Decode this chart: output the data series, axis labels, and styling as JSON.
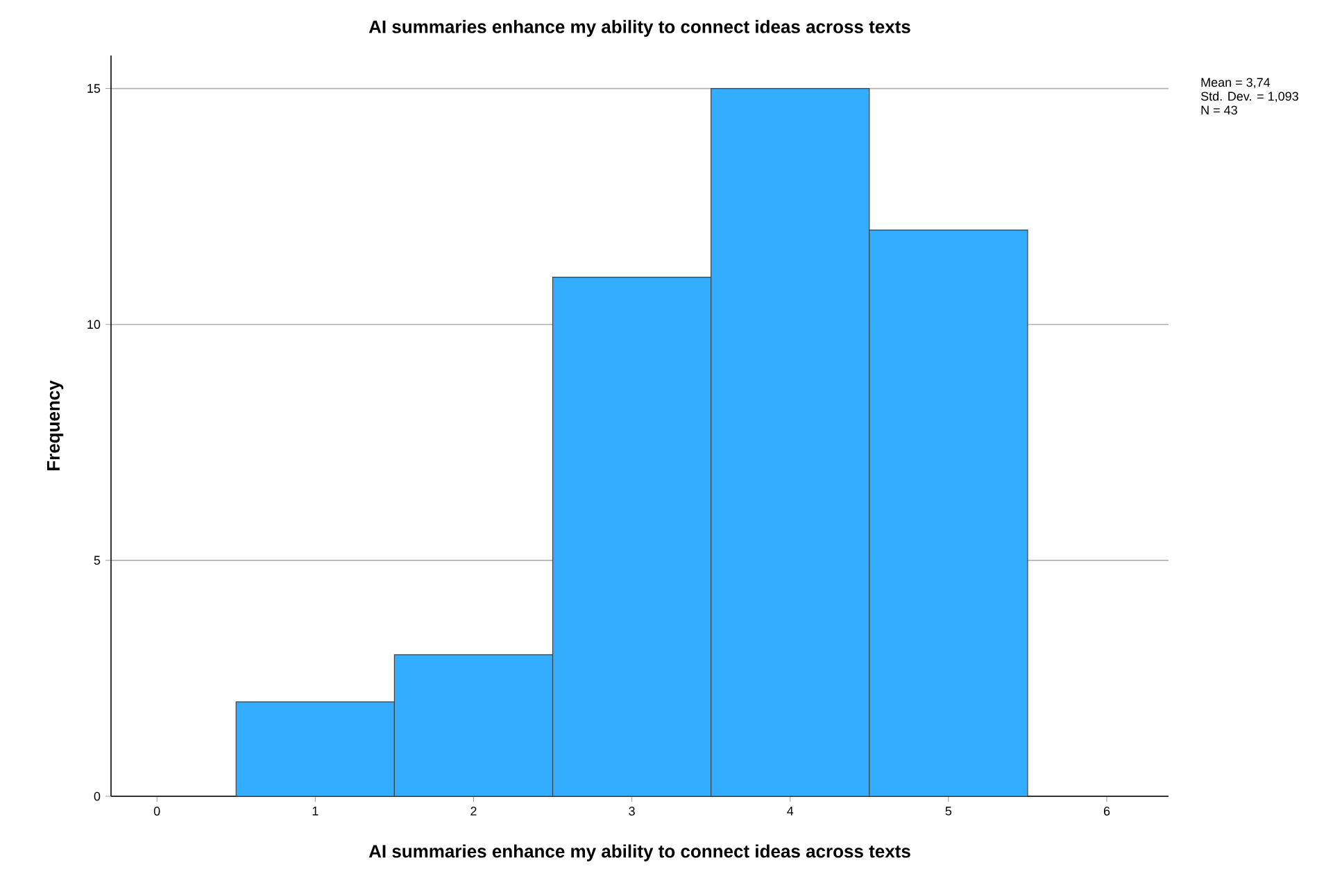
{
  "chart_data": {
    "type": "histogram",
    "title": "AI summaries enhance my ability to connect ideas across texts",
    "xlabel": "AI summaries enhance my ability to connect ideas across texts",
    "ylabel": "Frequency",
    "bins": [
      0.5,
      1.5,
      2.5,
      3.5,
      4.5,
      5.5
    ],
    "values": [
      2,
      3,
      11,
      15,
      12
    ],
    "color": "#33adff",
    "xlim": [
      -0.29,
      6.39
    ],
    "ylim": [
      0,
      15.7
    ],
    "xticks": [
      0,
      1,
      2,
      3,
      4,
      5,
      6
    ],
    "yticks": [
      0,
      5,
      10,
      15
    ],
    "grid": "y",
    "annotations": [
      "Mean = 3,74",
      "Std. Dev. = 1,093",
      "N = 43"
    ]
  }
}
